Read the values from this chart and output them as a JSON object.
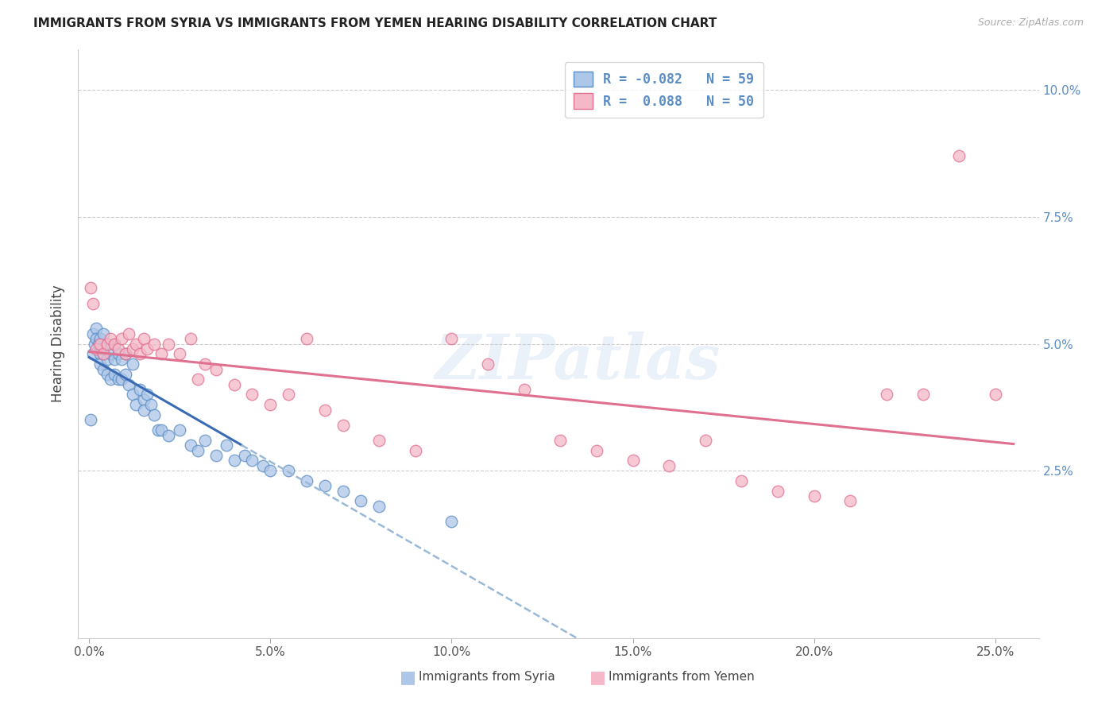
{
  "title": "IMMIGRANTS FROM SYRIA VS IMMIGRANTS FROM YEMEN HEARING DISABILITY CORRELATION CHART",
  "source": "Source: ZipAtlas.com",
  "xlim": [
    -0.003,
    0.262
  ],
  "ylim": [
    -0.008,
    0.108
  ],
  "xticks": [
    0.0,
    0.05,
    0.1,
    0.15,
    0.2,
    0.25
  ],
  "xlabels": [
    "0.0%",
    "5.0%",
    "10.0%",
    "15.0%",
    "20.0%",
    "25.0%"
  ],
  "yticks": [
    0.0,
    0.025,
    0.05,
    0.075,
    0.1
  ],
  "ylabels_right": [
    "",
    "2.5%",
    "5.0%",
    "7.5%",
    "10.0%"
  ],
  "syria_R": -0.082,
  "syria_N": 59,
  "yemen_R": 0.088,
  "yemen_N": 50,
  "syria_fill": "#aec6e8",
  "syria_edge": "#5b8ec4",
  "yemen_fill": "#f5b8c8",
  "yemen_edge": "#e07090",
  "syria_line_color": "#3a6bb5",
  "yemen_line_color": "#e07090",
  "dashed_color": "#9ab8d8",
  "right_axis_color": "#5b8ec4",
  "watermark": "ZIPatlas",
  "background_color": "#ffffff",
  "grid_color": "#cccccc",
  "syria_x": [
    0.0005,
    0.001,
    0.001,
    0.0015,
    0.002,
    0.002,
    0.0025,
    0.003,
    0.003,
    0.003,
    0.0035,
    0.004,
    0.004,
    0.004,
    0.005,
    0.005,
    0.005,
    0.006,
    0.006,
    0.007,
    0.007,
    0.007,
    0.008,
    0.008,
    0.009,
    0.009,
    0.01,
    0.01,
    0.011,
    0.012,
    0.012,
    0.013,
    0.014,
    0.015,
    0.015,
    0.016,
    0.017,
    0.018,
    0.019,
    0.02,
    0.022,
    0.025,
    0.028,
    0.03,
    0.032,
    0.035,
    0.038,
    0.04,
    0.043,
    0.045,
    0.048,
    0.05,
    0.055,
    0.06,
    0.065,
    0.07,
    0.075,
    0.08,
    0.1
  ],
  "syria_y": [
    0.035,
    0.052,
    0.048,
    0.05,
    0.053,
    0.051,
    0.05,
    0.048,
    0.051,
    0.046,
    0.049,
    0.052,
    0.048,
    0.045,
    0.05,
    0.047,
    0.044,
    0.048,
    0.043,
    0.05,
    0.047,
    0.044,
    0.048,
    0.043,
    0.047,
    0.043,
    0.048,
    0.044,
    0.042,
    0.046,
    0.04,
    0.038,
    0.041,
    0.039,
    0.037,
    0.04,
    0.038,
    0.036,
    0.033,
    0.033,
    0.032,
    0.033,
    0.03,
    0.029,
    0.031,
    0.028,
    0.03,
    0.027,
    0.028,
    0.027,
    0.026,
    0.025,
    0.025,
    0.023,
    0.022,
    0.021,
    0.019,
    0.018,
    0.015
  ],
  "yemen_x": [
    0.0005,
    0.001,
    0.002,
    0.003,
    0.004,
    0.005,
    0.006,
    0.007,
    0.008,
    0.009,
    0.01,
    0.011,
    0.012,
    0.013,
    0.014,
    0.015,
    0.016,
    0.018,
    0.02,
    0.022,
    0.025,
    0.028,
    0.03,
    0.032,
    0.035,
    0.04,
    0.045,
    0.05,
    0.055,
    0.06,
    0.065,
    0.07,
    0.08,
    0.09,
    0.1,
    0.11,
    0.12,
    0.13,
    0.14,
    0.15,
    0.16,
    0.17,
    0.18,
    0.19,
    0.2,
    0.21,
    0.22,
    0.23,
    0.24,
    0.25
  ],
  "yemen_y": [
    0.061,
    0.058,
    0.049,
    0.05,
    0.048,
    0.05,
    0.051,
    0.05,
    0.049,
    0.051,
    0.048,
    0.052,
    0.049,
    0.05,
    0.048,
    0.051,
    0.049,
    0.05,
    0.048,
    0.05,
    0.048,
    0.051,
    0.043,
    0.046,
    0.045,
    0.042,
    0.04,
    0.038,
    0.04,
    0.051,
    0.037,
    0.034,
    0.031,
    0.029,
    0.051,
    0.046,
    0.041,
    0.031,
    0.029,
    0.027,
    0.026,
    0.031,
    0.023,
    0.021,
    0.02,
    0.019,
    0.04,
    0.04,
    0.087,
    0.04
  ],
  "marker_size": 110
}
